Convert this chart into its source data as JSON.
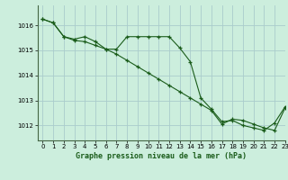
{
  "title": "Graphe pression niveau de la mer (hPa)",
  "background_color": "#cceedd",
  "grid_color": "#aacccc",
  "line_color": "#1a5c1a",
  "xlim": [
    -0.5,
    23
  ],
  "ylim": [
    1011.4,
    1016.8
  ],
  "yticks": [
    1012,
    1013,
    1014,
    1015,
    1016
  ],
  "xticks": [
    0,
    1,
    2,
    3,
    4,
    5,
    6,
    7,
    8,
    9,
    10,
    11,
    12,
    13,
    14,
    15,
    16,
    17,
    18,
    19,
    20,
    21,
    22,
    23
  ],
  "series1_x": [
    0,
    1,
    2,
    3,
    4,
    5,
    6,
    7,
    8,
    9,
    10,
    11,
    12,
    13,
    14,
    15,
    16,
    17,
    18,
    19,
    20,
    21,
    22,
    23
  ],
  "series1_y": [
    1016.25,
    1016.1,
    1015.55,
    1015.45,
    1015.55,
    1015.35,
    1015.05,
    1015.05,
    1015.55,
    1015.55,
    1015.55,
    1015.55,
    1015.55,
    1015.1,
    1014.55,
    1013.1,
    1012.65,
    1012.15,
    1012.2,
    1012.0,
    1011.9,
    1011.8,
    1012.1,
    1012.75
  ],
  "series2_x": [
    0,
    1,
    2,
    3,
    4,
    5,
    6,
    7,
    8,
    9,
    10,
    11,
    12,
    13,
    14,
    15,
    16,
    17,
    18,
    19,
    20,
    21,
    22,
    23
  ],
  "series2_y": [
    1016.25,
    1016.1,
    1015.55,
    1015.4,
    1015.35,
    1015.2,
    1015.05,
    1014.85,
    1014.6,
    1014.35,
    1014.1,
    1013.85,
    1013.6,
    1013.35,
    1013.1,
    1012.85,
    1012.6,
    1012.05,
    1012.25,
    1012.2,
    1012.05,
    1011.9,
    1011.8,
    1012.7
  ]
}
